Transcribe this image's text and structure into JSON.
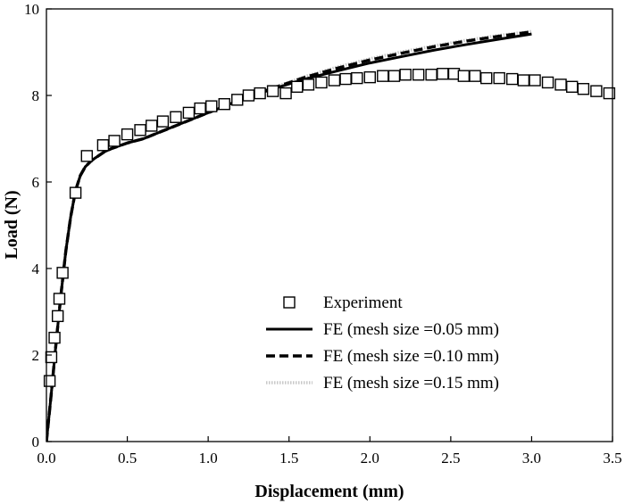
{
  "chart_data": {
    "type": "line",
    "title": "",
    "xlabel": "Displacement (mm)",
    "ylabel": "Load (N)",
    "xlim": [
      0.0,
      3.5
    ],
    "ylim": [
      0,
      10
    ],
    "x_ticks": [
      "0.0",
      "0.5",
      "1.0",
      "1.5",
      "2.0",
      "2.5",
      "3.0",
      "3.5"
    ],
    "y_ticks": [
      "0",
      "2",
      "4",
      "6",
      "8",
      "10"
    ],
    "grid": false,
    "legend_position": "center-right",
    "series": [
      {
        "name": "Experiment",
        "style": "square-markers",
        "color": "#000000",
        "x": [
          0.02,
          0.03,
          0.05,
          0.07,
          0.08,
          0.1,
          0.18,
          0.25,
          0.35,
          0.42,
          0.5,
          0.58,
          0.65,
          0.72,
          0.8,
          0.88,
          0.95,
          1.02,
          1.1,
          1.18,
          1.25,
          1.32,
          1.4,
          1.48,
          1.55,
          1.62,
          1.7,
          1.78,
          1.85,
          1.92,
          2.0,
          2.08,
          2.15,
          2.22,
          2.3,
          2.38,
          2.45,
          2.52,
          2.58,
          2.65,
          2.72,
          2.8,
          2.88,
          2.95,
          3.02,
          3.1,
          3.18,
          3.25,
          3.32,
          3.4,
          3.48
        ],
        "y": [
          1.4,
          1.95,
          2.4,
          2.9,
          3.3,
          3.9,
          5.75,
          6.6,
          6.85,
          6.95,
          7.1,
          7.2,
          7.3,
          7.4,
          7.5,
          7.6,
          7.7,
          7.75,
          7.8,
          7.9,
          8.0,
          8.05,
          8.1,
          8.05,
          8.2,
          8.25,
          8.3,
          8.35,
          8.38,
          8.4,
          8.42,
          8.45,
          8.45,
          8.48,
          8.48,
          8.48,
          8.5,
          8.5,
          8.45,
          8.45,
          8.4,
          8.4,
          8.38,
          8.35,
          8.35,
          8.3,
          8.25,
          8.2,
          8.15,
          8.1,
          8.05
        ]
      },
      {
        "name": "FE (mesh size =0.05 mm)",
        "style": "solid",
        "color": "#000000",
        "x": [
          0.0,
          0.03,
          0.06,
          0.09,
          0.12,
          0.15,
          0.18,
          0.21,
          0.24,
          0.28,
          0.32,
          0.36,
          0.4,
          0.5,
          0.6,
          0.8,
          1.0,
          1.2,
          1.4,
          1.6,
          1.8,
          2.0,
          2.2,
          2.4,
          2.6,
          2.8,
          3.0
        ],
        "y": [
          0.0,
          1.1,
          2.3,
          3.4,
          4.4,
          5.2,
          5.8,
          6.15,
          6.35,
          6.5,
          6.6,
          6.7,
          6.77,
          6.9,
          7.0,
          7.3,
          7.6,
          7.9,
          8.15,
          8.38,
          8.57,
          8.75,
          8.9,
          9.05,
          9.18,
          9.3,
          9.42
        ]
      },
      {
        "name": "FE (mesh size =0.10 mm)",
        "style": "dashed",
        "color": "#000000",
        "x": [
          0.0,
          0.03,
          0.06,
          0.09,
          0.12,
          0.15,
          0.18,
          0.21,
          0.24,
          0.28,
          0.32,
          0.36,
          0.4,
          0.5,
          0.6,
          0.8,
          1.0,
          1.2,
          1.4,
          1.6,
          1.8,
          2.0,
          2.2,
          2.4,
          2.6,
          2.8,
          3.0
        ],
        "y": [
          0.0,
          1.1,
          2.3,
          3.4,
          4.4,
          5.2,
          5.8,
          6.15,
          6.35,
          6.5,
          6.6,
          6.7,
          6.77,
          6.9,
          7.0,
          7.3,
          7.6,
          7.9,
          8.17,
          8.42,
          8.63,
          8.82,
          8.98,
          9.13,
          9.26,
          9.37,
          9.47
        ]
      },
      {
        "name": "FE (mesh size =0.15 mm)",
        "style": "dotted",
        "color": "#c8c8c8",
        "x": [
          0.0,
          0.03,
          0.06,
          0.09,
          0.12,
          0.15,
          0.18,
          0.21,
          0.24,
          0.28,
          0.32,
          0.36,
          0.4,
          0.5,
          0.6,
          0.8,
          1.0,
          1.2,
          1.4,
          1.6,
          1.8,
          2.0,
          2.2,
          2.4,
          2.6,
          2.8,
          3.0
        ],
        "y": [
          0.0,
          1.1,
          2.3,
          3.4,
          4.4,
          5.2,
          5.8,
          6.15,
          6.35,
          6.5,
          6.6,
          6.7,
          6.77,
          6.9,
          7.0,
          7.3,
          7.6,
          7.9,
          8.18,
          8.44,
          8.66,
          8.85,
          9.01,
          9.15,
          9.28,
          9.39,
          9.48
        ]
      }
    ]
  }
}
